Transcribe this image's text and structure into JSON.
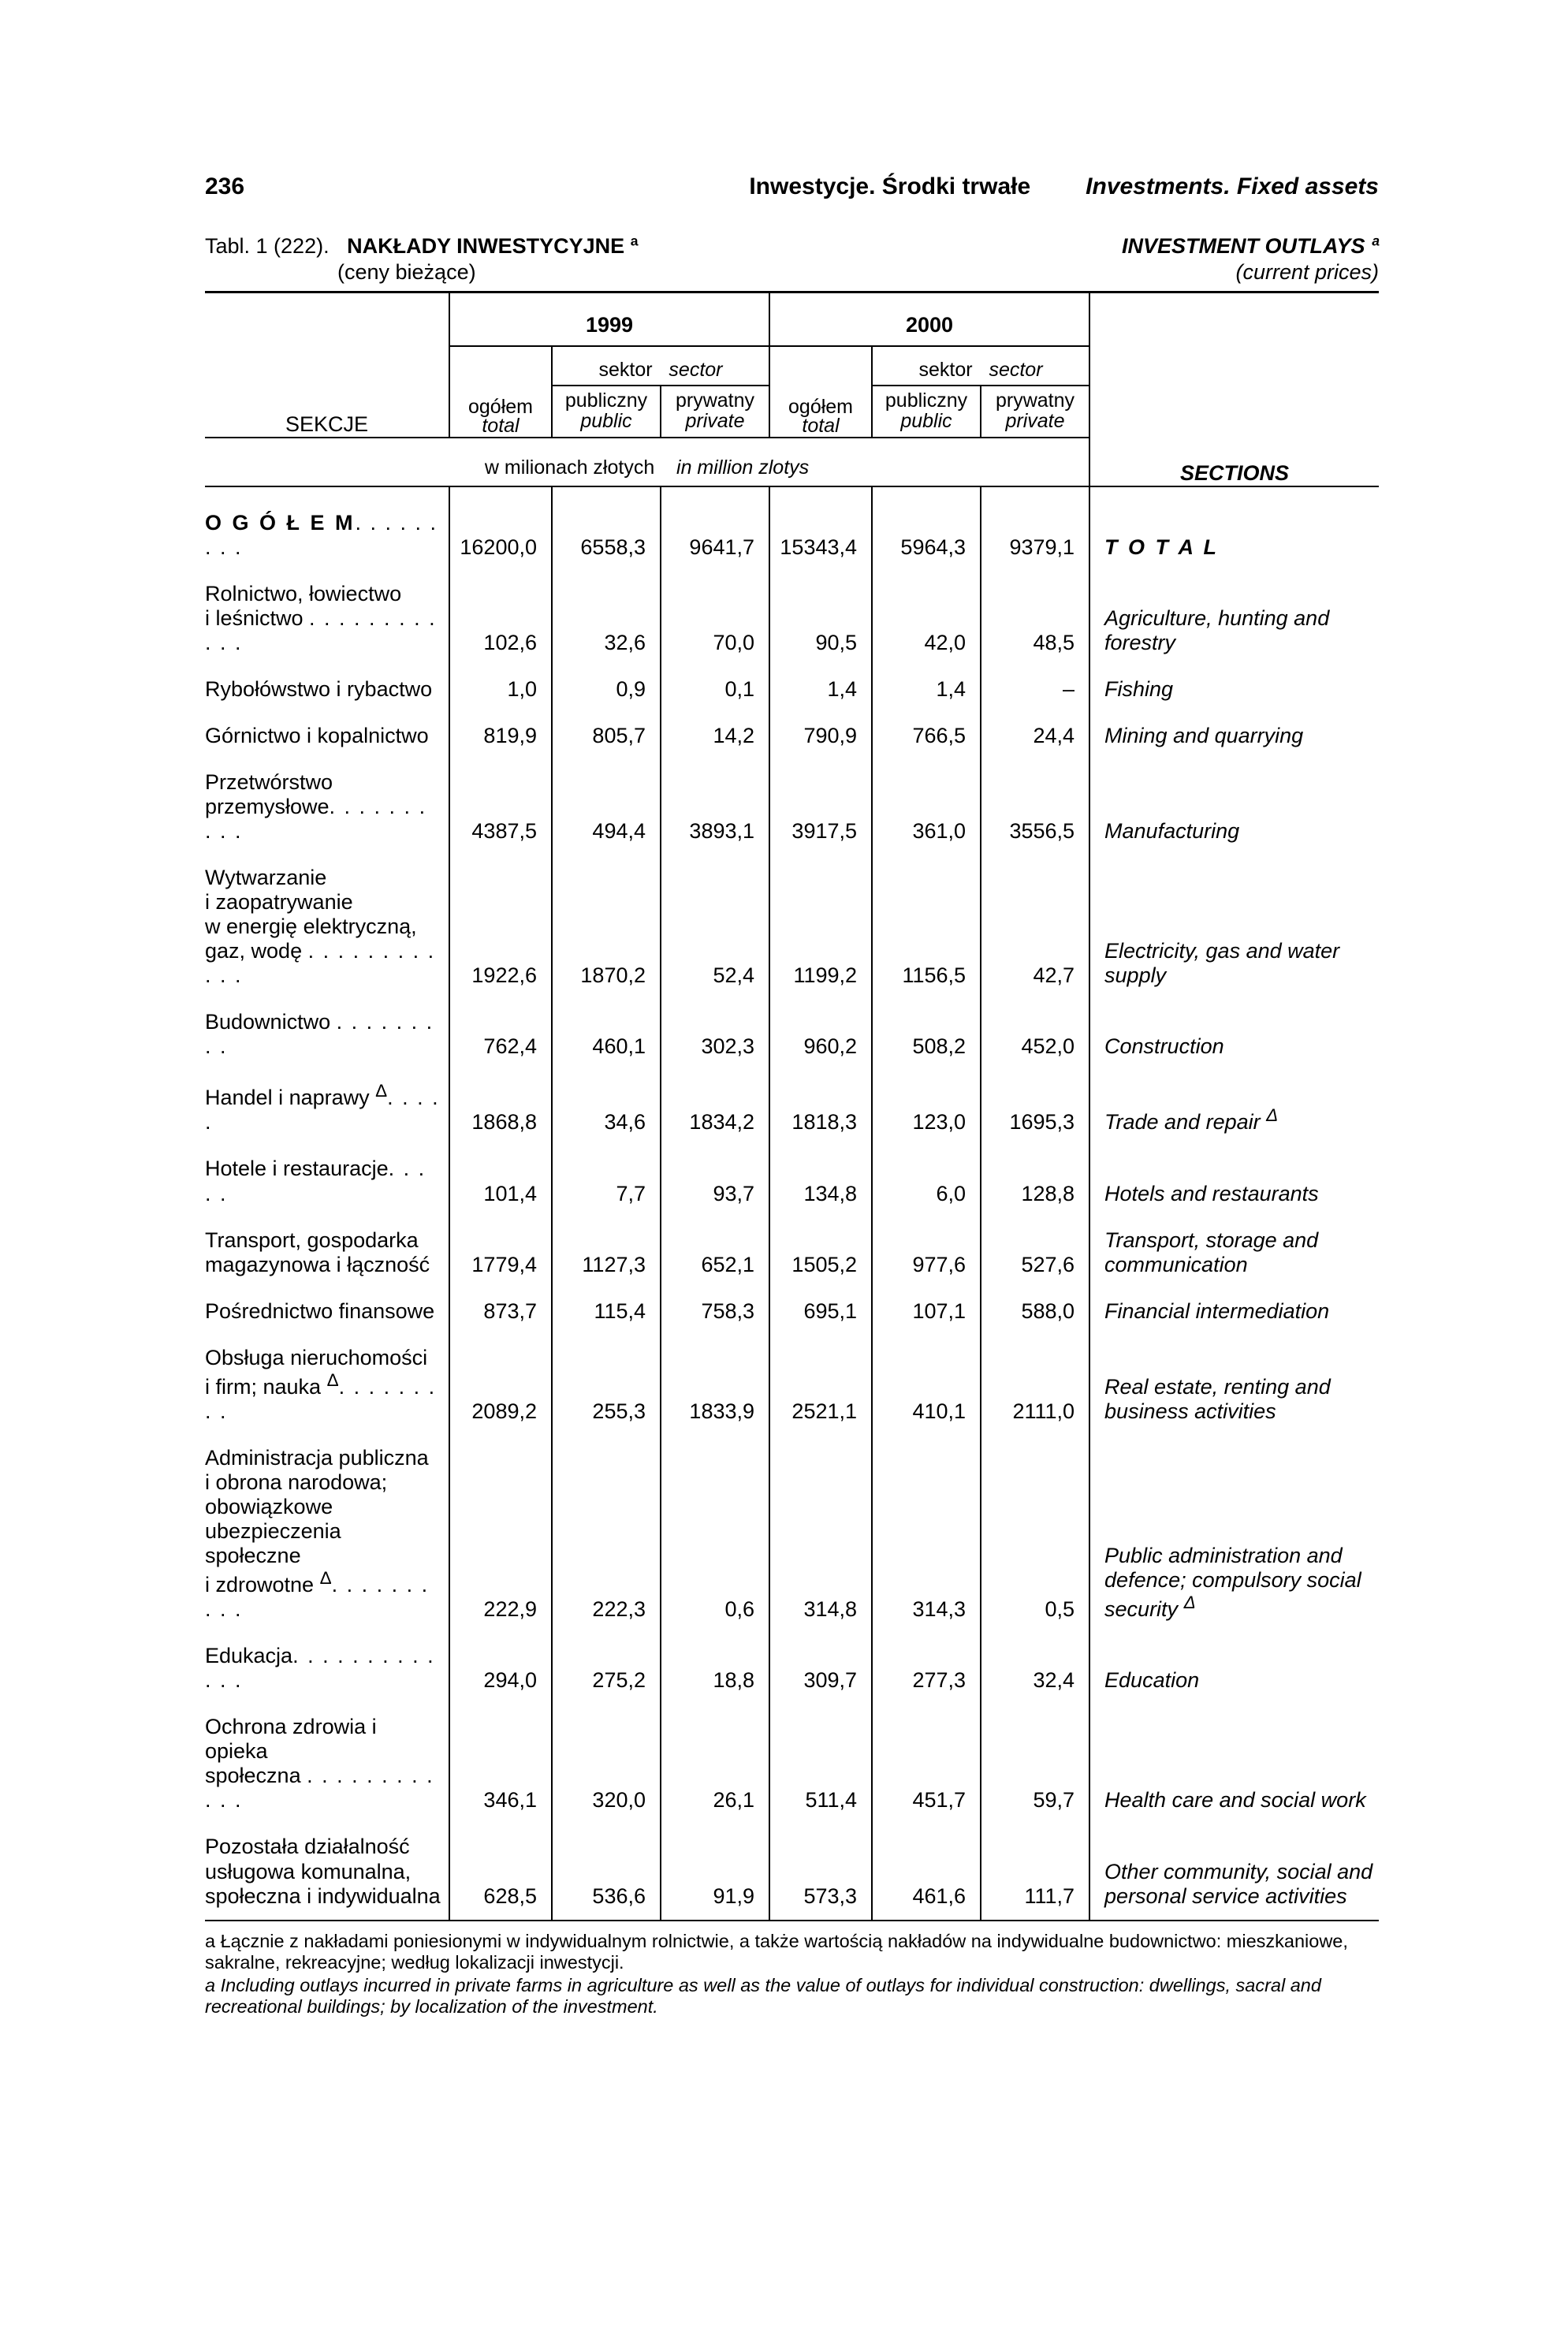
{
  "header": {
    "page_num": "236",
    "center": "Inwestycje. Środki trwałe",
    "right": "Investments. Fixed assets"
  },
  "title": {
    "ref": "Tabl. 1 (222).",
    "main": "NAKŁADY INWESTYCYJNE ª",
    "sub": "(ceny bieżące)",
    "main_en": "INVESTMENT OUTLAYS ª",
    "sub_en": "(current prices)"
  },
  "thead": {
    "sekcje": "SEKCJE",
    "sections": "SECTIONS",
    "y1999": "1999",
    "y2000": "2000",
    "ogolem": "ogółem",
    "total": "total",
    "sektor": "sektor",
    "sector": "sector",
    "publiczny": "publiczny",
    "public": "public",
    "prywatny": "prywatny",
    "private": "private",
    "mln_pl": "w milionach złotych",
    "mln_en": "in million zlotys"
  },
  "rows": [
    {
      "cls": "first",
      "pl": "<span class='fw8 sp'>O G Ó Ł E M</span><span class='dots'>. . . . . . . . .</span>",
      "v": [
        "16200,0",
        "6558,3",
        "9641,7",
        "15343,4",
        "5964,3",
        "9379,1"
      ],
      "en": "<span class='fw8 sp'>T O T A L</span>"
    },
    {
      "pl": "Rolnictwo, łowiectwo<br>i leśnictwo <span class='dots'>. . . . . . . . . . . .</span>",
      "v": [
        "102,6",
        "32,6",
        "70,0",
        "90,5",
        "42,0",
        "48,5"
      ],
      "en": "Agriculture, hunting and forestry"
    },
    {
      "pl": "Rybołówstwo i rybactwo",
      "v": [
        "1,0",
        "0,9",
        "0,1",
        "1,4",
        "1,4",
        "–"
      ],
      "en": "Fishing"
    },
    {
      "pl": "Górnictwo i kopalnictwo",
      "v": [
        "819,9",
        "805,7",
        "14,2",
        "790,9",
        "766,5",
        "24,4"
      ],
      "en": "Mining and quarrying"
    },
    {
      "pl": "Przetwórstwo<br>przemysłowe<span class='dots'>. . . . . . . . . .</span>",
      "v": [
        "4387,5",
        "494,4",
        "3893,1",
        "3917,5",
        "361,0",
        "3556,5"
      ],
      "en": "Manufacturing"
    },
    {
      "pl": "Wytwarzanie<br>i zaopatrywanie<br>w energię elektryczną,<br>gaz, wodę <span class='dots'>. . . . . . . . . . . .</span>",
      "v": [
        "1922,6",
        "1870,2",
        "52,4",
        "1199,2",
        "1156,5",
        "42,7"
      ],
      "en": "Electricity, gas and water supply"
    },
    {
      "pl": "Budownictwo <span class='dots'>. . . . . . . . .</span>",
      "v": [
        "762,4",
        "460,1",
        "302,3",
        "960,2",
        "508,2",
        "452,0"
      ],
      "en": "Construction"
    },
    {
      "pl": "Handel i naprawy <sup>Δ</sup><span class='dots'>. . . . .</span>",
      "v": [
        "1868,8",
        "34,6",
        "1834,2",
        "1818,3",
        "123,0",
        "1695,3"
      ],
      "en": "Trade and repair <sup>Δ</sup>"
    },
    {
      "pl": "Hotele i restauracje<span class='dots'>. . . . .</span>",
      "v": [
        "101,4",
        "7,7",
        "93,7",
        "134,8",
        "6,0",
        "128,8"
      ],
      "en": "Hotels and restaurants"
    },
    {
      "pl": "Transport, gospodarka<br>magazynowa i łączność",
      "v": [
        "1779,4",
        "1127,3",
        "652,1",
        "1505,2",
        "977,6",
        "527,6"
      ],
      "en": "Transport, storage and communication"
    },
    {
      "pl": "Pośrednictwo finansowe",
      "v": [
        "873,7",
        "115,4",
        "758,3",
        "695,1",
        "107,1",
        "588,0"
      ],
      "en": "Financial intermediation"
    },
    {
      "pl": "Obsługa nieruchomości<br>i firm; nauka <sup>Δ</sup><span class='dots'>. . . . . . . . .</span>",
      "v": [
        "2089,2",
        "255,3",
        "1833,9",
        "2521,1",
        "410,1",
        "2111,0"
      ],
      "en": "Real estate, renting and business activities"
    },
    {
      "pl": "Administracja publiczna<br>i obrona narodowa;<br>obowiązkowe<br>ubezpieczenia społeczne<br>i zdrowotne <sup>Δ</sup><span class='dots'>. . . . . . . . . .</span>",
      "v": [
        "222,9",
        "222,3",
        "0,6",
        "314,8",
        "314,3",
        "0,5"
      ],
      "en": "Public administration and defence; compulsory social security <sup>Δ</sup>"
    },
    {
      "pl": "Edukacja<span class='dots'>. . . . . . . . . . . . .</span>",
      "v": [
        "294,0",
        "275,2",
        "18,8",
        "309,7",
        "277,3",
        "32,4"
      ],
      "en": "Education"
    },
    {
      "pl": "Ochrona zdrowia i opieka<br>społeczna <span class='dots'>. . . . . . . . . . . .</span>",
      "v": [
        "346,1",
        "320,0",
        "26,1",
        "511,4",
        "451,7",
        "59,7"
      ],
      "en": "Health care and social work"
    },
    {
      "pl": "Pozostała działalność<br>usługowa komunalna,<br>społeczna i indywidualna",
      "v": [
        "628,5",
        "536,6",
        "91,9",
        "573,3",
        "461,6",
        "111,7"
      ],
      "en": "Other community, social and personal service activities"
    }
  ],
  "footnotes": {
    "a_pl": "a  Łącznie z nakładami poniesionymi w indywidualnym rolnictwie, a także wartością nakładów na indywidualne budownictwo: mieszkaniowe, sakralne, rekreacyjne; według lokalizacji inwestycji.",
    "a_en": "a  Including outlays incurred in private farms in agriculture as well as the value of outlays for individual construction: dwellings, sacral and recreational buildings; by localization of the investment."
  }
}
